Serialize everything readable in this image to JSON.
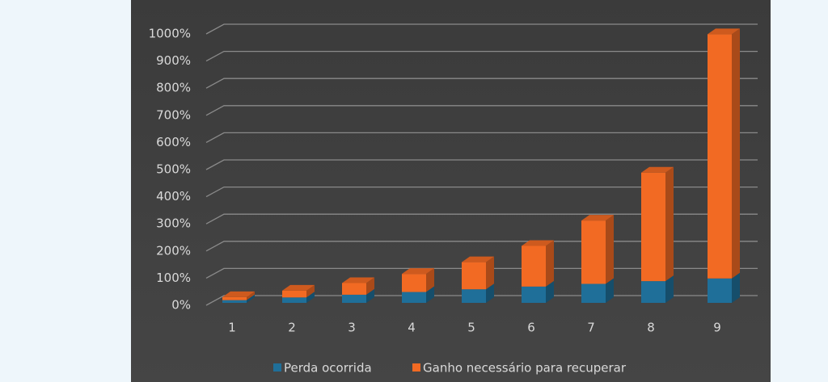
{
  "chart_data": {
    "type": "bar3d_stacked",
    "categories": [
      "1",
      "2",
      "3",
      "4",
      "5",
      "6",
      "7",
      "8",
      "9"
    ],
    "series": [
      {
        "name": "Perda ocorrida",
        "color": "#1f6f99",
        "values": [
          10,
          20,
          30,
          40,
          50,
          60,
          70,
          80,
          90
        ]
      },
      {
        "name": "Ganho necessário para recuperar",
        "color": "#f26a23",
        "values": [
          11.1,
          25,
          42.9,
          66.7,
          100,
          150,
          233.3,
          400,
          900
        ]
      }
    ],
    "ylim": [
      0,
      1000
    ],
    "yticks": [
      {
        "value": 0,
        "label": "0%"
      },
      {
        "value": 100,
        "label": "100%"
      },
      {
        "value": 200,
        "label": "200%"
      },
      {
        "value": 300,
        "label": "300%"
      },
      {
        "value": 400,
        "label": "400%"
      },
      {
        "value": 500,
        "label": "500%"
      },
      {
        "value": 600,
        "label": "600%"
      },
      {
        "value": 700,
        "label": "700%"
      },
      {
        "value": 800,
        "label": "800%"
      },
      {
        "value": 900,
        "label": "900%"
      },
      {
        "value": 1000,
        "label": "1000%"
      }
    ],
    "grid": true,
    "legend": "bottom"
  }
}
